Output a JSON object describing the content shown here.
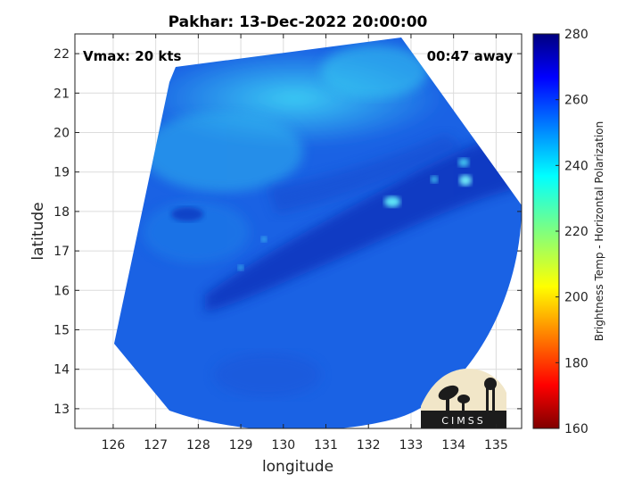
{
  "title": "Pakhar: 13-Dec-2022 20:00:00",
  "annotations": {
    "vmax": "Vmax: 20 kts",
    "time_away": "00:47 away"
  },
  "axes": {
    "xlabel": "longitude",
    "ylabel": "latitude",
    "xlim": [
      125.1,
      135.6
    ],
    "ylim": [
      12.5,
      22.5
    ],
    "xticks": [
      126,
      127,
      128,
      129,
      130,
      131,
      132,
      133,
      134,
      135
    ],
    "yticks": [
      13,
      14,
      15,
      16,
      17,
      18,
      19,
      20,
      21,
      22
    ],
    "grid": true
  },
  "colorbar": {
    "label": "Brightness Temp - Horizontal Polarization",
    "range": [
      160,
      280
    ],
    "ticks": [
      160,
      180,
      200,
      220,
      240,
      260,
      280
    ],
    "colormap": "jet",
    "placement": "right"
  },
  "logo": {
    "text": "CIMSS"
  },
  "colors": {
    "swath_base": "#1a63e6",
    "warm_band": "#0a2fb8",
    "cool_area": "#2ec8f0",
    "background": "#ffffff",
    "grid": "#d9d9d9"
  }
}
